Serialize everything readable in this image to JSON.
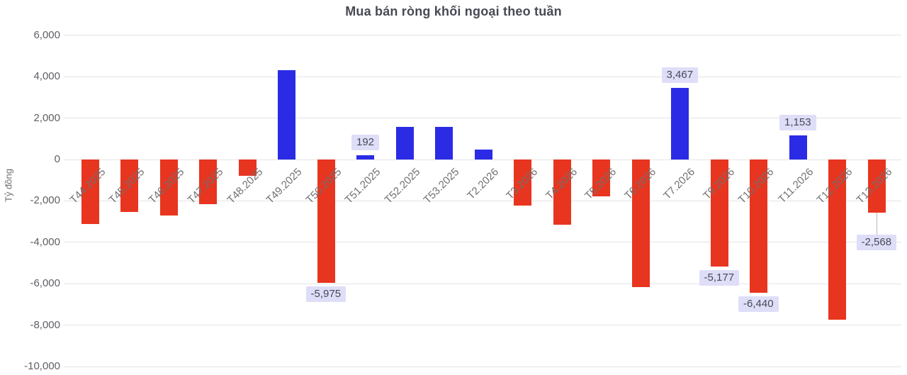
{
  "chart_data": {
    "type": "bar",
    "title": "Mua bán ròng khối ngoại theo tuần",
    "ylabel": "Tỷ đồng",
    "xlabel": "",
    "ylim": [
      -10000,
      6000
    ],
    "ytick_step": 2000,
    "ytick_labels": [
      "6,000",
      "4,000",
      "2,000",
      "0",
      "-2,000",
      "-4,000",
      "-6,000",
      "-8,000",
      "-10,000"
    ],
    "grid": "horizontal",
    "legend": "none",
    "colors": {
      "positive_bar": "#2b2be6",
      "negative_bar": "#e8351f",
      "label_box_bg": "#dedef8",
      "label_text": "#474a57",
      "title_text": "#474954",
      "axis_text": "#6f7072",
      "gridline": "#e4e4e4"
    },
    "categories": [
      "T44.2025",
      "T45.2025",
      "T46.2025",
      "T47.2025",
      "T48.2025",
      "T49.2025",
      "T50.2025",
      "T51.2025",
      "T52.2025",
      "T53.2025",
      "T2.2026",
      "T3.2026",
      "T4.2026",
      "T5.2026",
      "T6.2026",
      "T7.2026",
      "T9.2026",
      "T10.2026",
      "T11.2026",
      "T12.2026",
      "T13.2026"
    ],
    "points": [
      {
        "week": "T44.2025",
        "value": -3100
      },
      {
        "week": "T45.2025",
        "value": -2550
      },
      {
        "week": "T46.2025",
        "value": -2720
      },
      {
        "week": "T47.2025",
        "value": -2150
      },
      {
        "week": "T48.2025",
        "value": -780
      },
      {
        "week": "T49.2025",
        "value": 4310
      },
      {
        "week": "T50.2025",
        "value": -5975,
        "label": "-5,975"
      },
      {
        "week": "T51.2025",
        "value": 192,
        "label": "192"
      },
      {
        "week": "T52.2025",
        "value": 1560
      },
      {
        "week": "T53.2025",
        "value": 1560
      },
      {
        "week": "T2.2026",
        "value": 490
      },
      {
        "week": "T3.2026",
        "value": -2230
      },
      {
        "week": "T4.2026",
        "value": -3160
      },
      {
        "week": "T5.2026",
        "value": -1790
      },
      {
        "week": "T6.2026",
        "value": -6150
      },
      {
        "week": "T7.2026",
        "value": 3467,
        "label": "3,467"
      },
      {
        "week": "T9.2026",
        "value": -5177,
        "label": "-5,177"
      },
      {
        "week": "T10.2026",
        "value": -6440,
        "label": "-6,440"
      },
      {
        "week": "T11.2026",
        "value": 1153,
        "label": "1,153"
      },
      {
        "week": "T12.2026",
        "value": -7740
      },
      {
        "week": "T13.2026",
        "value": -2568,
        "label": "-2,568",
        "callout": true
      }
    ]
  }
}
